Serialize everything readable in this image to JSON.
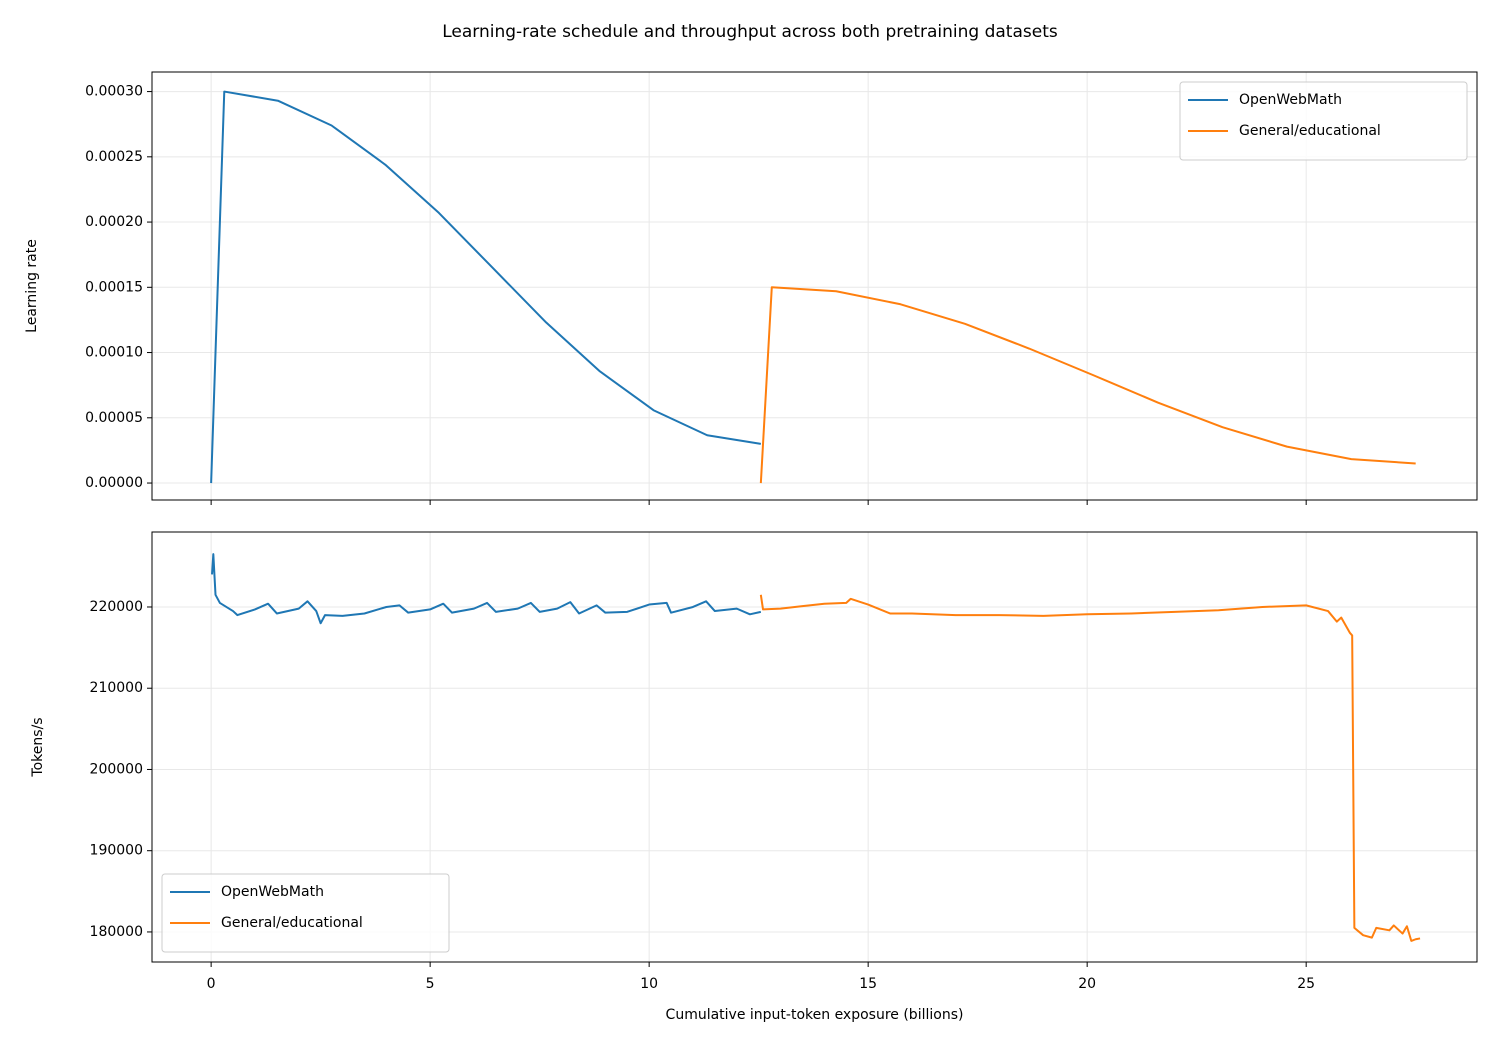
{
  "title": "Learning-rate schedule and throughput across both pretraining datasets",
  "chart_data": [
    {
      "type": "line",
      "ylabel": "Learning rate",
      "xlim": [
        -1.35,
        28.9
      ],
      "xticks": [
        0,
        5,
        10,
        15,
        20,
        25
      ],
      "ylim": [
        -1.3e-05,
        0.000315
      ],
      "yticks": [
        {
          "value": 0,
          "label": "0.00000"
        },
        {
          "value": 5e-05,
          "label": "0.00005"
        },
        {
          "value": 0.0001,
          "label": "0.00010"
        },
        {
          "value": 0.00015,
          "label": "0.00015"
        },
        {
          "value": 0.0002,
          "label": "0.00020"
        },
        {
          "value": 0.00025,
          "label": "0.00025"
        },
        {
          "value": 0.0003,
          "label": "0.00030"
        }
      ],
      "grid": true,
      "legend": "upper right",
      "series": [
        {
          "name": "OpenWebMath",
          "color": "#1f77b4",
          "x": [
            0,
            0.3,
            1.525,
            2.75,
            3.975,
            5.2,
            6.425,
            7.65,
            8.875,
            10.1,
            11.325,
            12.55
          ],
          "values": [
            0,
            0.0003,
            0.000293,
            0.000274,
            0.000244,
            0.000207,
            0.000165,
            0.000123,
            8.56e-05,
            5.58e-05,
            3.66e-05,
            3e-05
          ]
        },
        {
          "name": "General/educational",
          "color": "#ff7f0e",
          "x": [
            12.55,
            12.8,
            14.27,
            15.74,
            17.21,
            18.68,
            20.15,
            21.62,
            23.09,
            24.56,
            26.03,
            27.5
          ],
          "values": [
            0,
            0.00015,
            0.000147,
            0.000137,
            0.000122,
            0.000103,
            8.25e-05,
            6.16e-05,
            4.28e-05,
            2.79e-05,
            1.83e-05,
            1.5e-05
          ]
        }
      ]
    },
    {
      "type": "line",
      "xlabel": "Cumulative input-token exposure (billions)",
      "ylabel": "Tokens/s",
      "xlim": [
        -1.35,
        28.9
      ],
      "xticks": [
        0,
        5,
        10,
        15,
        20,
        25
      ],
      "ylim": [
        176300,
        229230
      ],
      "yticks": [
        180000,
        190000,
        200000,
        210000,
        220000
      ],
      "grid": true,
      "legend": "lower left",
      "series": [
        {
          "name": "OpenWebMath",
          "color": "#1f77b4",
          "x": [
            0.02,
            0.05,
            0.1,
            0.2,
            0.5,
            0.6,
            1.0,
            1.3,
            1.5,
            2.0,
            2.2,
            2.4,
            2.5,
            2.6,
            3.0,
            3.5,
            4.0,
            4.3,
            4.5,
            5.0,
            5.3,
            5.5,
            6.0,
            6.3,
            6.5,
            7.0,
            7.3,
            7.5,
            7.9,
            8.2,
            8.4,
            8.8,
            9.0,
            9.5,
            10.0,
            10.4,
            10.5,
            11.0,
            11.3,
            11.5,
            12.0,
            12.3,
            12.55
          ],
          "values": [
            224000,
            226500,
            221500,
            220500,
            219500,
            219000,
            219700,
            220400,
            219200,
            219800,
            220700,
            219500,
            218000,
            219000,
            218900,
            219200,
            220000,
            220200,
            219300,
            219700,
            220400,
            219300,
            219800,
            220500,
            219400,
            219800,
            220500,
            219400,
            219800,
            220600,
            219200,
            220200,
            219300,
            219400,
            220300,
            220500,
            219300,
            220000,
            220700,
            219500,
            219800,
            219100,
            219400
          ]
        },
        {
          "name": "General/educational",
          "color": "#ff7f0e",
          "x": [
            12.55,
            12.6,
            13.0,
            13.5,
            14.0,
            14.5,
            14.6,
            15.0,
            15.5,
            16.0,
            17,
            18,
            19,
            20,
            21,
            22,
            23,
            24,
            25,
            25.5,
            25.7,
            25.8,
            26.0,
            26.05,
            26.1,
            26.3,
            26.5,
            26.6,
            26.9,
            27.0,
            27.2,
            27.3,
            27.4,
            27.5,
            27.6
          ],
          "values": [
            221500,
            219700,
            219800,
            220100,
            220400,
            220500,
            221000,
            220300,
            219200,
            219200,
            219000,
            219000,
            218900,
            219100,
            219200,
            219400,
            219600,
            220000,
            220200,
            219500,
            218200,
            218700,
            216800,
            216500,
            180500,
            179600,
            179300,
            180500,
            180200,
            180800,
            179800,
            180700,
            178900,
            179100,
            179200
          ]
        }
      ]
    }
  ]
}
